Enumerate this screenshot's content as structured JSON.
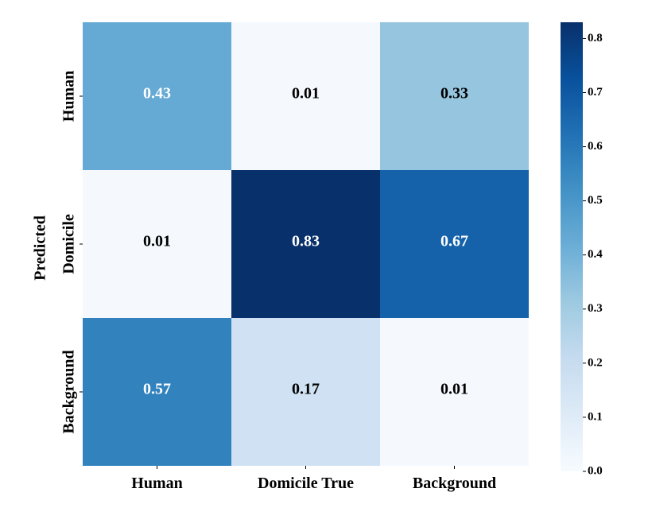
{
  "chart_data": {
    "type": "heatmap",
    "title": "",
    "xlabel": "",
    "ylabel": "Predicted",
    "x_categories": [
      "Human",
      "Domicile True",
      "Background"
    ],
    "y_categories": [
      "Human",
      "Domicile",
      "Background"
    ],
    "values": [
      [
        0.43,
        0.01,
        0.33
      ],
      [
        0.01,
        0.83,
        0.67
      ],
      [
        0.57,
        0.17,
        0.01
      ]
    ],
    "cell_labels": [
      [
        "0.43",
        "0.01",
        "0.33"
      ],
      [
        "0.01",
        "0.83",
        "0.67"
      ],
      [
        "0.57",
        "0.17",
        "0.01"
      ]
    ],
    "colormap": "Blues",
    "color_range": [
      0.0,
      0.83
    ],
    "colorbar_ticks": [
      "0.0",
      "0.1",
      "0.2",
      "0.3",
      "0.4",
      "0.5",
      "0.6",
      "0.7",
      "0.8"
    ],
    "colorbar_tick_values": [
      0.0,
      0.1,
      0.2,
      0.3,
      0.4,
      0.5,
      0.6,
      0.7,
      0.8
    ],
    "colors": {
      "low": "#f7fbff",
      "high": "#08306b",
      "text_dark": "#000000",
      "text_light": "#ffffff"
    }
  }
}
